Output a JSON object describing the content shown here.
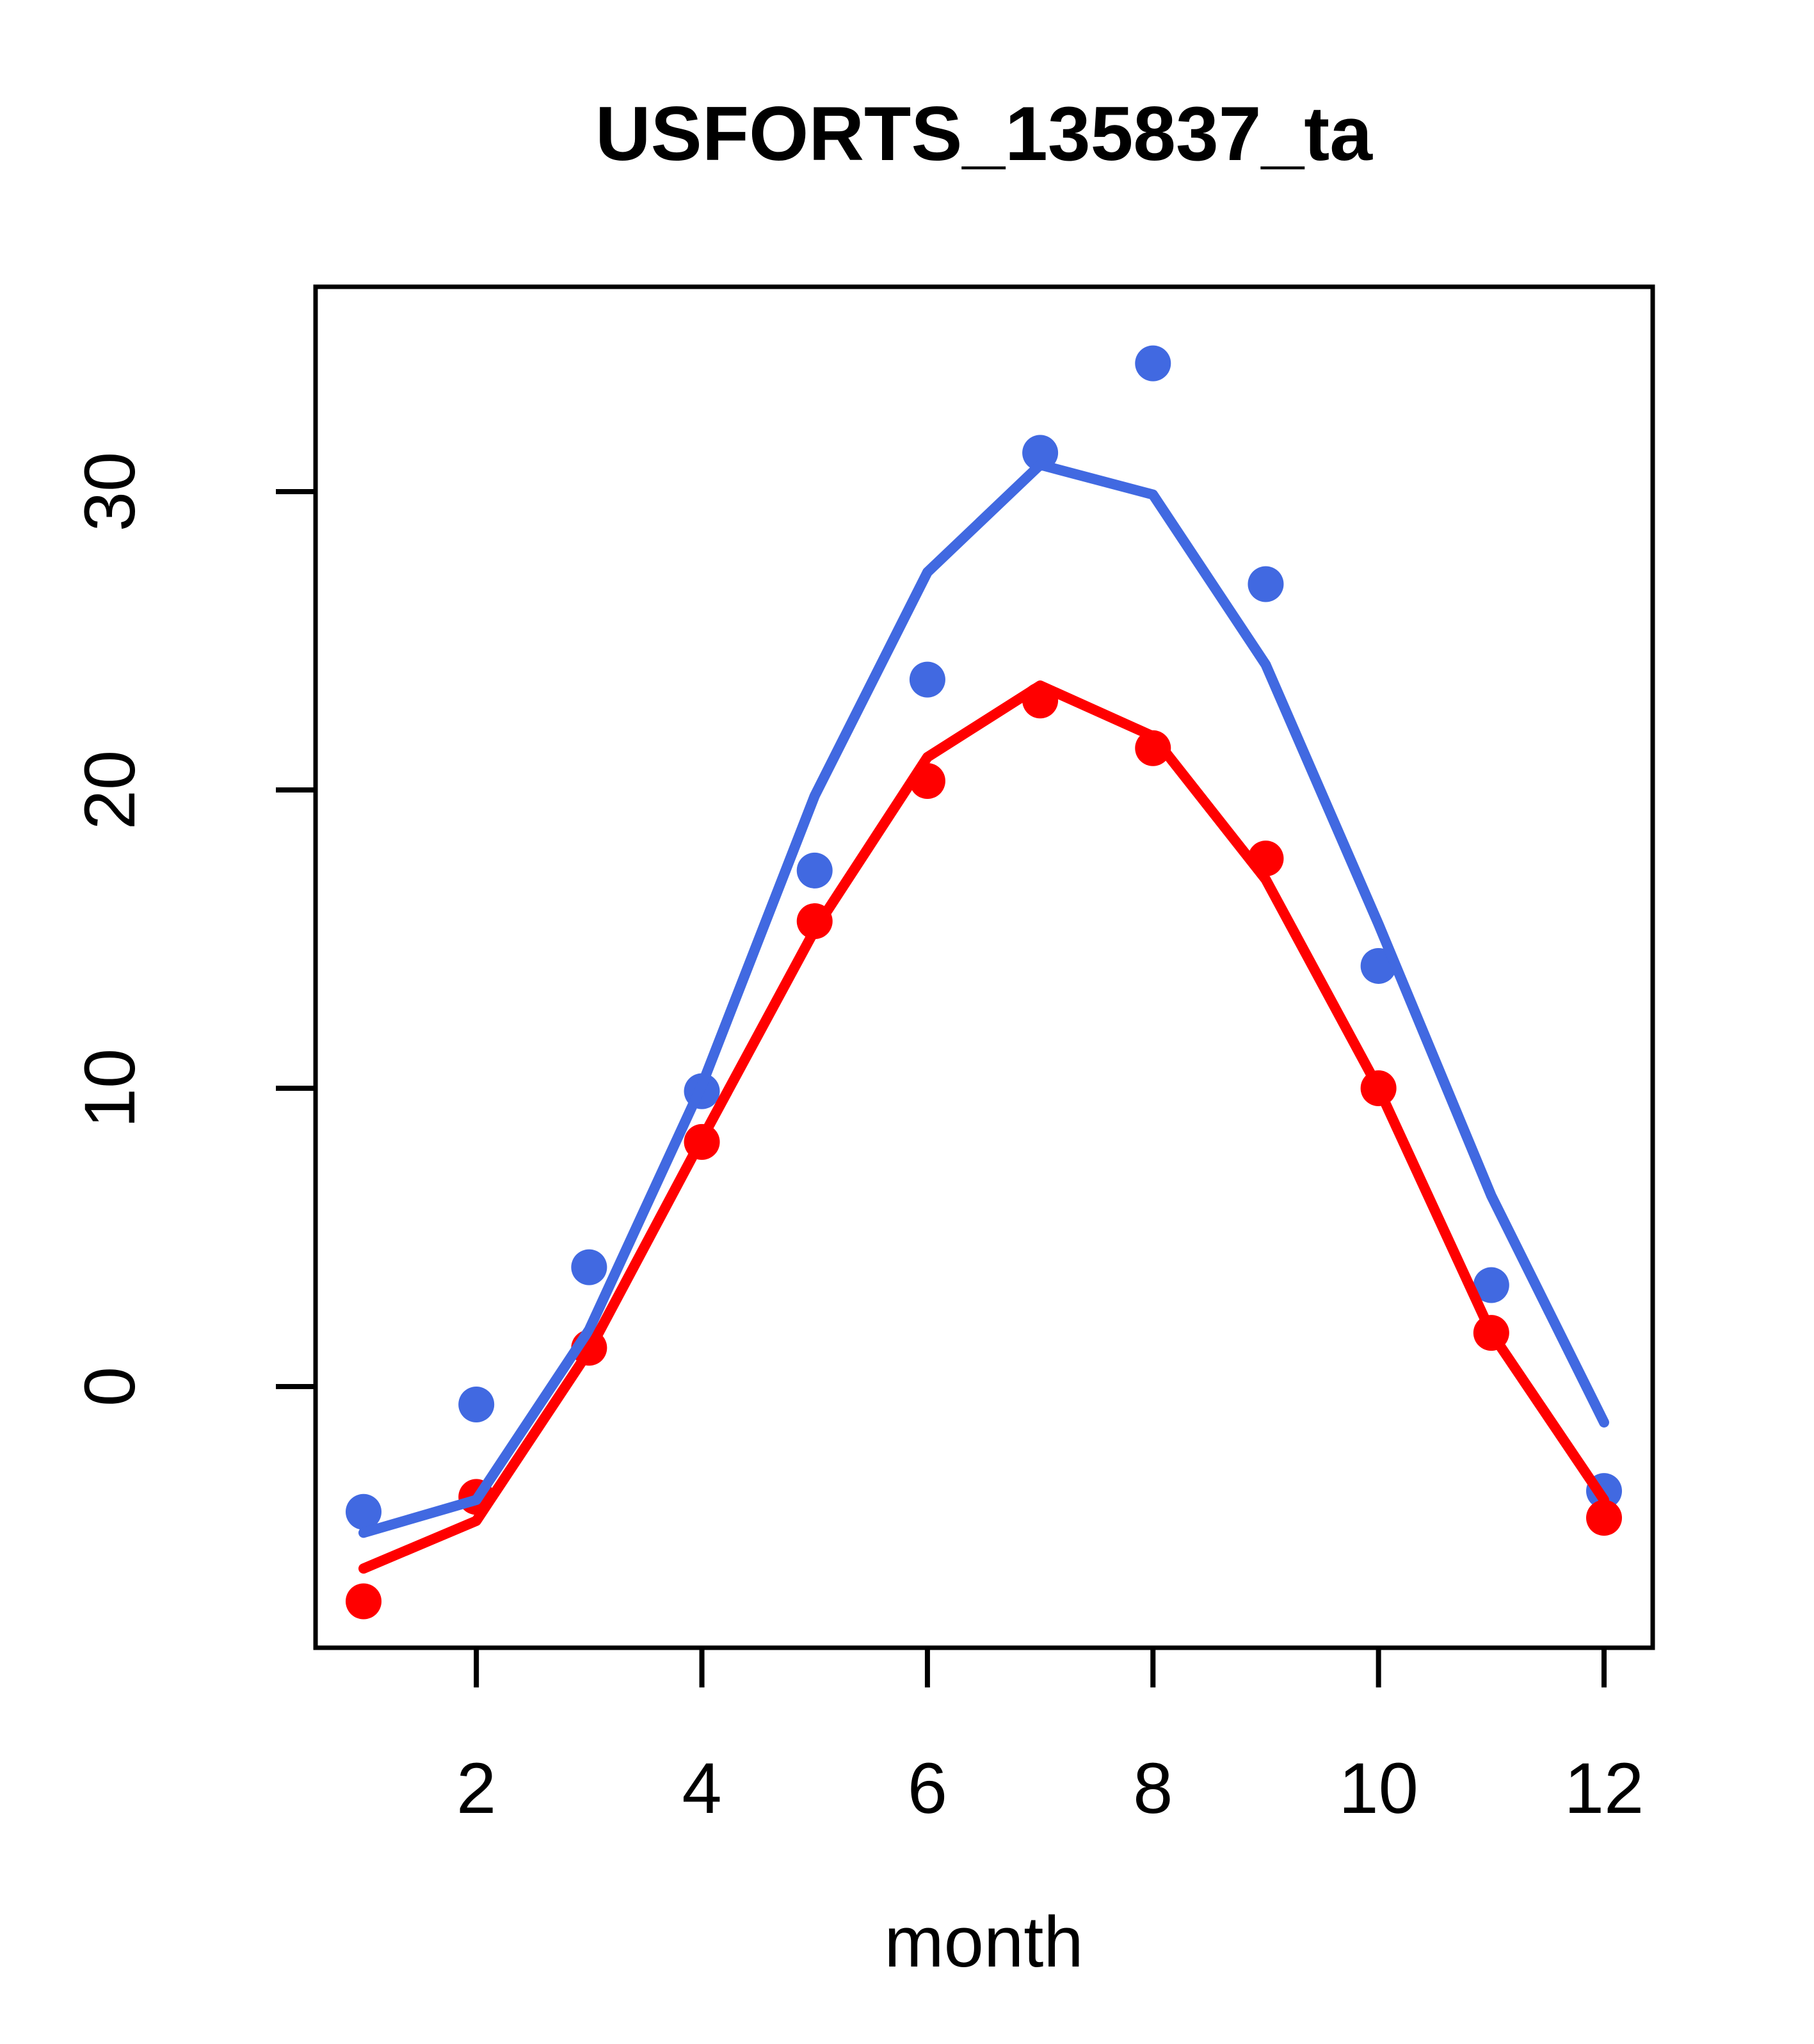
{
  "figure": {
    "background": "#FFFFFF",
    "axis_color": "#000000"
  },
  "chart_data": {
    "type": "line",
    "title": "USFORTS_135837_ta",
    "xlabel": "month",
    "ylabel": "",
    "grid": false,
    "legend": "none",
    "x": [
      1,
      2,
      3,
      4,
      5,
      6,
      7,
      8,
      9,
      10,
      11,
      12
    ],
    "x_tick_values": [
      2,
      4,
      6,
      8,
      10,
      12
    ],
    "x_tick_labels": [
      "2",
      "4",
      "6",
      "8",
      "10",
      "12"
    ],
    "y_tick_values": [
      0,
      10,
      20,
      30
    ],
    "y_tick_labels": [
      "0",
      "10",
      "20",
      "30"
    ],
    "xlim": [
      0.57,
      12.43
    ],
    "ylim": [
      -8.8,
      36.9
    ],
    "series": [
      {
        "name": "blue-points",
        "style": "points",
        "color": "#4169E1",
        "values": [
          -4.2,
          -0.6,
          4.0,
          9.9,
          17.3,
          23.7,
          31.3,
          34.3,
          26.9,
          14.1,
          3.4,
          -3.5
        ]
      },
      {
        "name": "red-points",
        "style": "points",
        "color": "#FF0000",
        "values": [
          -7.2,
          -3.7,
          1.3,
          8.2,
          15.6,
          20.3,
          23.0,
          21.4,
          17.7,
          10.0,
          1.8,
          -4.4
        ]
      },
      {
        "name": "blue-line",
        "style": "line",
        "color": "#4169E1",
        "values": [
          -4.9,
          -3.8,
          1.9,
          10.1,
          19.8,
          27.3,
          30.9,
          29.9,
          24.2,
          15.5,
          6.4,
          -1.2
        ]
      },
      {
        "name": "red-line",
        "style": "line",
        "color": "#FF0000",
        "values": [
          -6.1,
          -4.5,
          1.2,
          8.3,
          15.3,
          21.1,
          23.5,
          21.8,
          17.0,
          10.0,
          1.8,
          -3.8
        ]
      }
    ]
  }
}
